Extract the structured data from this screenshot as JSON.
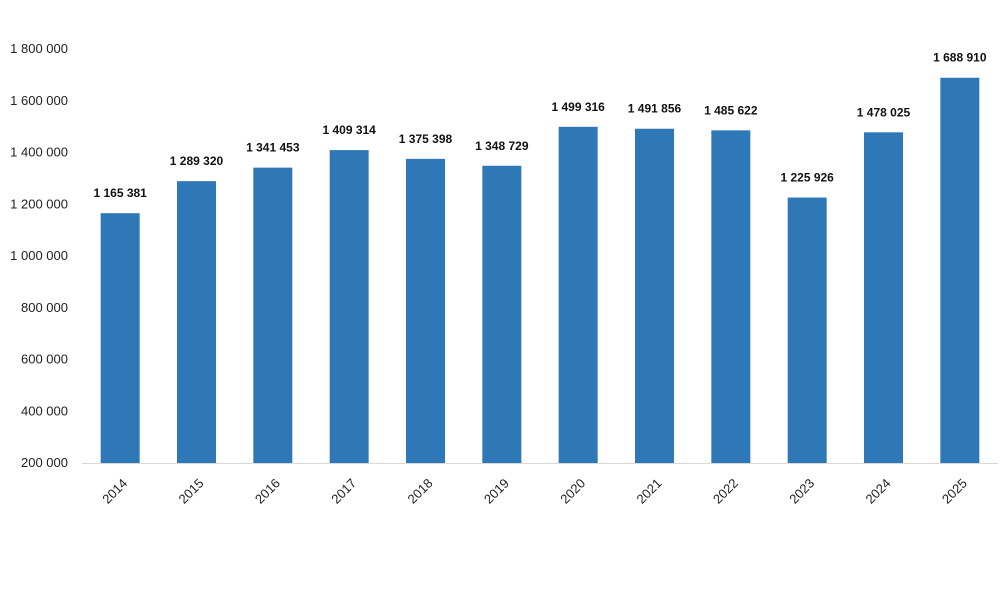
{
  "chart_data": {
    "type": "bar",
    "categories": [
      "2014",
      "2015",
      "2016",
      "2017",
      "2018",
      "2019",
      "2020",
      "2021",
      "2022",
      "2023",
      "2024",
      "2025"
    ],
    "values": [
      1165381,
      1289320,
      1341453,
      1409314,
      1375398,
      1348729,
      1499316,
      1491856,
      1485622,
      1225926,
      1478025,
      1688910
    ],
    "data_labels": [
      "1 165 381",
      "1 289 320",
      "1 341 453",
      "1 409 314",
      "1 375 398",
      "1 348 729",
      "1 499 316",
      "1 491 856",
      "1 485 622",
      "1 225 926",
      "1 478 025",
      "1 688 910"
    ],
    "ylim": [
      200000,
      1800000
    ],
    "yticks": [
      200000,
      400000,
      600000,
      800000,
      1000000,
      1200000,
      1400000,
      1600000,
      1800000
    ],
    "ytick_labels": [
      "200 000",
      "400 000",
      "600 000",
      "800 000",
      "1 000 000",
      "1 200 000",
      "1 400 000",
      "1 600 000",
      "1 800 000"
    ],
    "grid": false,
    "legend": "none",
    "bar_color": "#2f78b7",
    "title": "",
    "xlabel": "",
    "ylabel": ""
  }
}
